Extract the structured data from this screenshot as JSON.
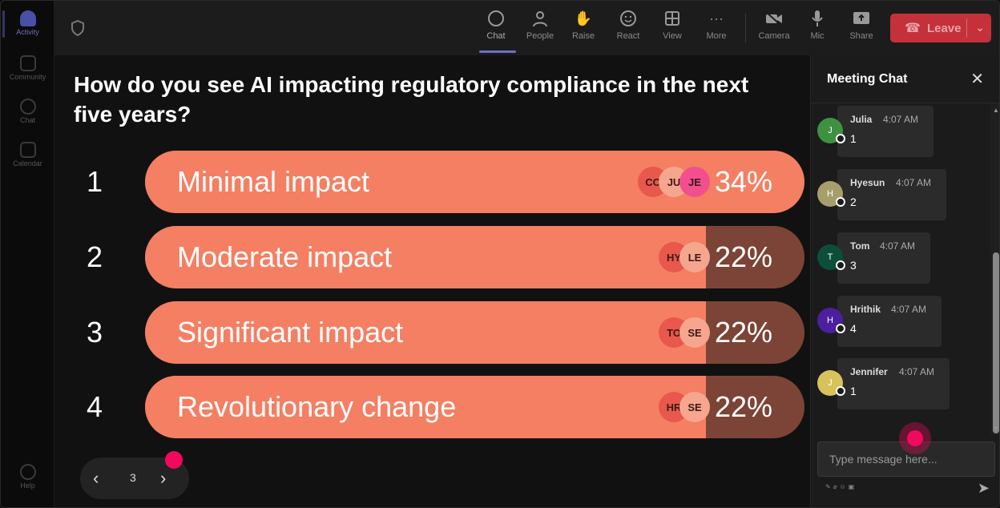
{
  "rail": {
    "items": [
      {
        "label": "Activity"
      },
      {
        "label": "Community"
      },
      {
        "label": "Chat"
      },
      {
        "label": "Calendar"
      }
    ],
    "help": "Help"
  },
  "toolbar": {
    "chat": "Chat",
    "people": "People",
    "raise": "Raise",
    "react": "React",
    "view": "View",
    "more": "More",
    "camera": "Camera",
    "mic": "Mic",
    "share": "Share",
    "leave": "Leave"
  },
  "poll": {
    "question": "How do you see AI impacting regulatory compliance in the next five years?",
    "options": [
      {
        "num": "1",
        "label": "Minimal impact",
        "pct_text": "34%",
        "pct": 100,
        "avatars": [
          {
            "initials": "CO",
            "color": "#e8584c"
          },
          {
            "initials": "JU",
            "color": "#f6a58f"
          },
          {
            "initials": "JE",
            "color": "#f24f8f"
          }
        ]
      },
      {
        "num": "2",
        "label": "Moderate impact",
        "pct_text": "22%",
        "pct": 85,
        "avatars": [
          {
            "initials": "HY",
            "color": "#e8584c"
          },
          {
            "initials": "LE",
            "color": "#f6a58f"
          }
        ]
      },
      {
        "num": "3",
        "label": "Significant impact",
        "pct_text": "22%",
        "pct": 85,
        "avatars": [
          {
            "initials": "TO",
            "color": "#e8584c"
          },
          {
            "initials": "SE",
            "color": "#f6a58f"
          }
        ]
      },
      {
        "num": "4",
        "label": "Revolutionary change",
        "pct_text": "22%",
        "pct": 85,
        "avatars": [
          {
            "initials": "HR",
            "color": "#e8584c"
          },
          {
            "initials": "SE",
            "color": "#f6a58f"
          }
        ]
      }
    ],
    "page": "3"
  },
  "chat": {
    "title": "Meeting Chat",
    "placeholder": "Type message here...",
    "messages": [
      {
        "initial": "J",
        "author": "Julia",
        "time": "4:07 AM",
        "text": "1",
        "color": "#3f9142"
      },
      {
        "initial": "H",
        "author": "Hyesun",
        "time": "4:07 AM",
        "text": "2",
        "color": "#a79f6b"
      },
      {
        "initial": "T",
        "author": "Tom",
        "time": "4:07 AM",
        "text": "3",
        "color": "#0d4e3a"
      },
      {
        "initial": "H",
        "author": "Hrithik",
        "time": "4:07 AM",
        "text": "4",
        "color": "#4b1f9e"
      },
      {
        "initial": "J",
        "author": "Jennifer",
        "time": "4:07 AM",
        "text": "1",
        "color": "#d8c35a"
      }
    ]
  }
}
